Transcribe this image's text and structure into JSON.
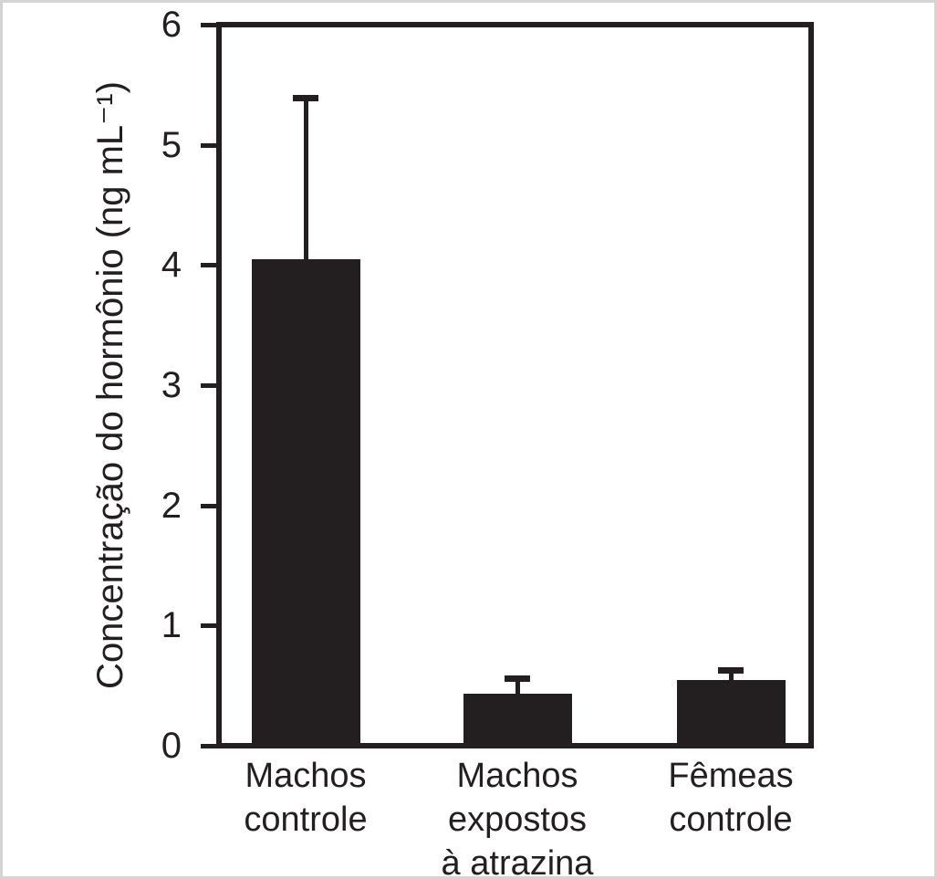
{
  "figure": {
    "background": "#ffffff",
    "frame_border_color": "#d4d4d4"
  },
  "chart_data": {
    "type": "bar",
    "title": "",
    "xlabel": "",
    "ylabel": "Concentração do hormônio (ng mL⁻¹)",
    "categories": [
      "Machos\ncontrole",
      "Machos\nexpostos\nà atrazina",
      "Fêmeas\ncontrole"
    ],
    "values": [
      4.05,
      0.43,
      0.55
    ],
    "error_plus": [
      1.34,
      0.13,
      0.08
    ],
    "error_bars": "upper only, with top caps",
    "ylim": [
      0,
      6
    ],
    "yticks": [
      0,
      1,
      2,
      3,
      4,
      5,
      6
    ],
    "grid": false,
    "legend": null,
    "bar_color": "#231f20",
    "axis_color": "#231f20",
    "text_color": "#231f20",
    "plot_frame": "full box"
  }
}
